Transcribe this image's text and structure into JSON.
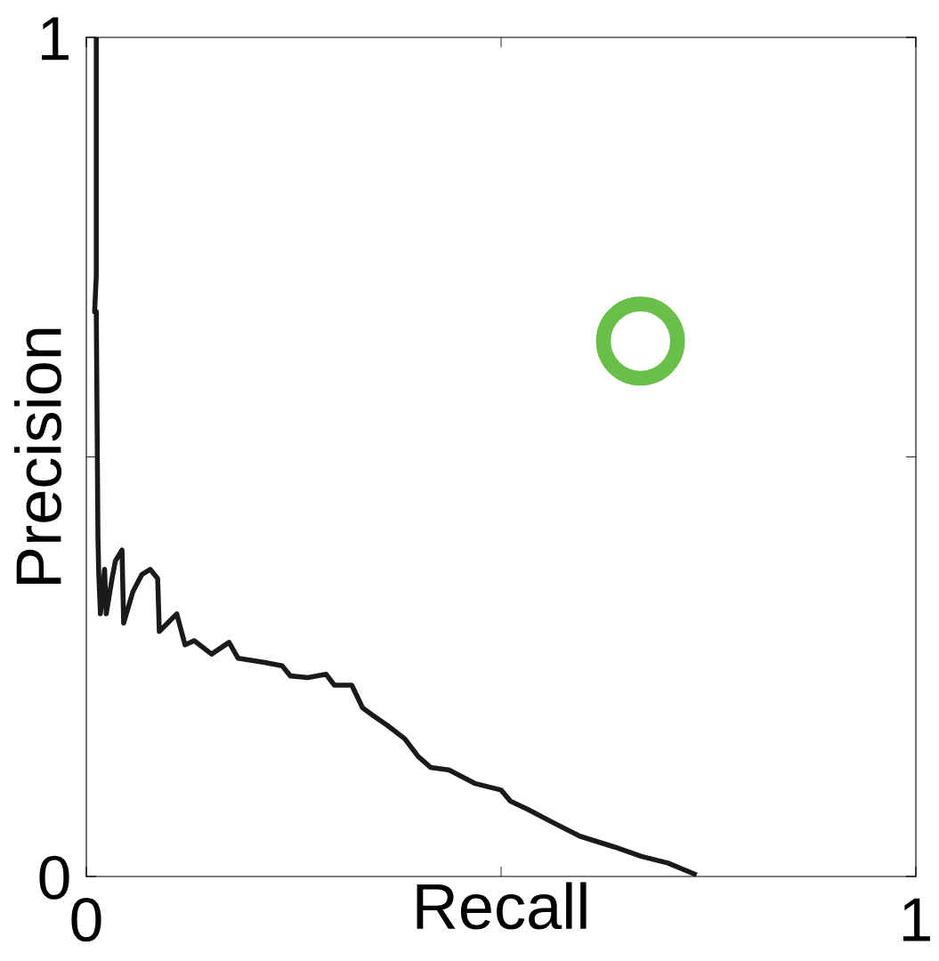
{
  "chart_data": {
    "type": "line",
    "xlabel": "Recall",
    "ylabel": "Precision",
    "xlim": [
      0,
      1
    ],
    "ylim": [
      0,
      1
    ],
    "xticks": [
      0,
      {
        "value": 0.5,
        "label": null
      },
      1
    ],
    "yticks": [
      0,
      {
        "value": 0.5,
        "label": null
      },
      1
    ],
    "grid": false,
    "line_style": "solid",
    "series": [
      {
        "color": "#1a1a1a",
        "marker": "none",
        "x": [
          0.012,
          0.012,
          0.01,
          0.012,
          0.014,
          0.015,
          0.017,
          0.022,
          0.024,
          0.031,
          0.035,
          0.043,
          0.045,
          0.056,
          0.067,
          0.077,
          0.086,
          0.088,
          0.098,
          0.109,
          0.119,
          0.13,
          0.151,
          0.172,
          0.183,
          0.215,
          0.236,
          0.246,
          0.267,
          0.289,
          0.299,
          0.32,
          0.333,
          0.347,
          0.363,
          0.384,
          0.4,
          0.415,
          0.437,
          0.468,
          0.5,
          0.511,
          0.532,
          0.563,
          0.595,
          0.637,
          0.669,
          0.701,
          0.733
        ],
        "values": [
          1.0,
          0.716,
          0.673,
          0.673,
          0.403,
          0.36,
          0.313,
          0.366,
          0.313,
          0.355,
          0.376,
          0.389,
          0.302,
          0.339,
          0.36,
          0.366,
          0.355,
          0.292,
          0.302,
          0.313,
          0.276,
          0.281,
          0.265,
          0.279,
          0.26,
          0.255,
          0.251,
          0.239,
          0.237,
          0.241,
          0.228,
          0.228,
          0.201,
          0.191,
          0.18,
          0.164,
          0.143,
          0.13,
          0.127,
          0.111,
          0.103,
          0.09,
          0.08,
          0.064,
          0.048,
          0.035,
          0.024,
          0.016,
          0.003
        ]
      },
      {
        "type": "scatter",
        "color": "#6abf4b",
        "marker": "circle",
        "x": [
          0.668
        ],
        "values": [
          0.638
        ]
      }
    ]
  }
}
